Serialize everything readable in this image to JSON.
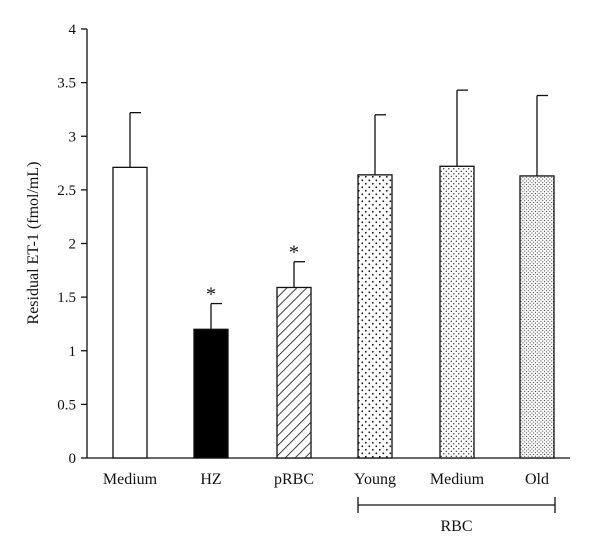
{
  "chart_data": {
    "type": "bar",
    "title": "",
    "xlabel": "",
    "ylabel": "Residual ET-1 (fmol/mL)",
    "ylim": [
      0,
      4
    ],
    "yticks": [
      "0",
      "0.5",
      "1",
      "1.5",
      "2",
      "2.5",
      "3",
      "3.5",
      "4"
    ],
    "grid": false,
    "categories": [
      "Medium",
      "HZ",
      "pRBC",
      "Young",
      "Medium",
      "Old"
    ],
    "values": [
      2.71,
      1.2,
      1.59,
      2.64,
      2.72,
      2.63
    ],
    "error_upper": [
      3.22,
      1.44,
      1.83,
      3.2,
      3.43,
      3.38
    ],
    "significance": [
      "",
      "*",
      "*",
      "",
      "",
      ""
    ],
    "fills": [
      "white",
      "solid-black",
      "diagonal-hatch",
      "sparse-dots",
      "medium-dots",
      "dense-dots"
    ],
    "group_bracket": {
      "label": "RBC",
      "categories": [
        "Young",
        "Medium",
        "Old"
      ]
    }
  }
}
